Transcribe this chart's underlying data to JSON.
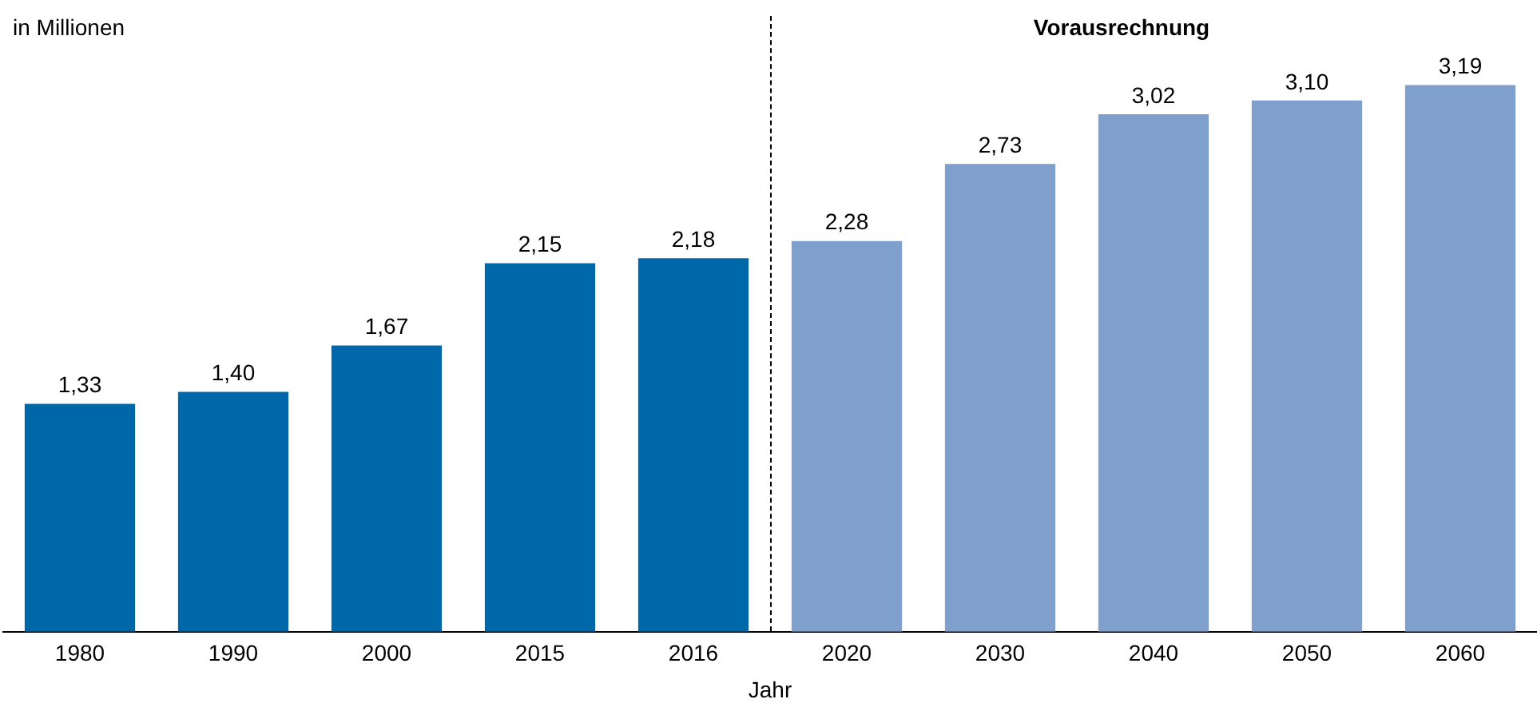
{
  "chart_data": {
    "type": "bar",
    "ylabel": "in Millionen",
    "xlabel": "Jahr",
    "categories": [
      "1980",
      "1990",
      "2000",
      "2015",
      "2016",
      "2020",
      "2030",
      "2040",
      "2050",
      "2060"
    ],
    "values": [
      1.33,
      1.4,
      1.67,
      2.15,
      2.18,
      2.28,
      2.73,
      3.02,
      3.1,
      3.19
    ],
    "value_labels": [
      "1,33",
      "1,40",
      "1,67",
      "2,15",
      "2,18",
      "2,28",
      "2,73",
      "3,02",
      "3,10",
      "3,19"
    ],
    "colors": [
      "#0068a8",
      "#0068a8",
      "#0068a8",
      "#0068a8",
      "#0068a8",
      "#7f9fcd",
      "#7f9fcd",
      "#7f9fcd",
      "#7f9fcd",
      "#7f9fcd"
    ],
    "annotations": [
      "Vorausrechnung"
    ],
    "tick_labels": "x",
    "grid": false,
    "legend": false
  }
}
